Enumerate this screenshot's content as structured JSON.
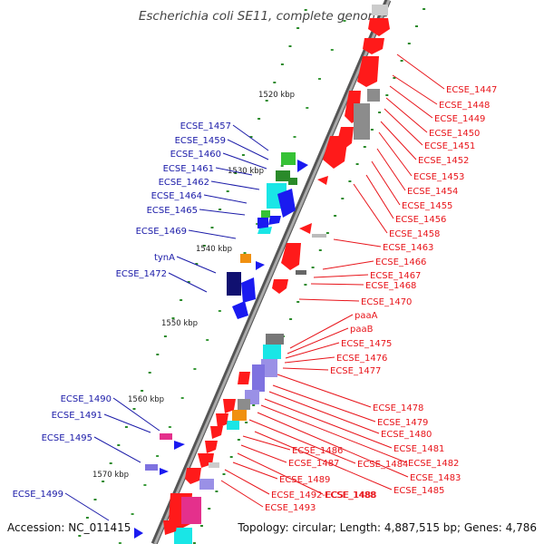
{
  "title": "Escherichia coli SE11, complete genome",
  "footer": {
    "accession": "Accession: NC_011415",
    "summary": "Topology: circular; Length: 4,887,515 bp; Genes: 4,786"
  },
  "kbp_marks": [
    "1520 kbp",
    "1530 kbp",
    "1540 kbp",
    "1550 kbp",
    "1560 kbp",
    "1570 kbp"
  ],
  "left_labels": [
    "ECSE_1457",
    "ECSE_1459",
    "ECSE_1460",
    "ECSE_1461",
    "ECSE_1462",
    "ECSE_1464",
    "ECSE_1465",
    "ECSE_1469",
    "tynA",
    "ECSE_1472",
    "ECSE_1490",
    "ECSE_1491",
    "ECSE_1495",
    "ECSE_1499"
  ],
  "right_labels": [
    "ECSE_1447",
    "ECSE_1448",
    "ECSE_1449",
    "ECSE_1450",
    "ECSE_1451",
    "ECSE_1452",
    "ECSE_1453",
    "ECSE_1454",
    "ECSE_1455",
    "ECSE_1456",
    "ECSE_1458",
    "ECSE_1463",
    "ECSE_1466",
    "ECSE_1467",
    "ECSE_1468",
    "ECSE_1470",
    "paaA",
    "paaB",
    "ECSE_1475",
    "ECSE_1476",
    "ECSE_1477",
    "ECSE_1478",
    "ECSE_1479",
    "ECSE_1480",
    "ECSE_1481",
    "ECSE_1482",
    "ECSE_1483",
    "ECSE_1484",
    "ECSE_1485",
    "ECSE_1486",
    "ECSE_1487",
    "ECSE_1488",
    "ECSE_1489",
    "ECSE_1492-ECSE_1488",
    "ECSE_1493"
  ],
  "colors": {
    "left_label": "#1a1aa8",
    "right_label": "#e8141a",
    "backbone": "#888888",
    "gc_dots": "#2a8a2a",
    "gene_red": "#ff1a1a",
    "gene_blue": "#1a1af0",
    "gene_cyan": "#19e6e6",
    "gene_green": "#35c235",
    "gene_gray": "#8c8c8c",
    "gene_navy": "#101070",
    "gene_orange": "#f09010",
    "gene_magenta": "#e4308c",
    "gene_lavender": "#9a90e6"
  }
}
